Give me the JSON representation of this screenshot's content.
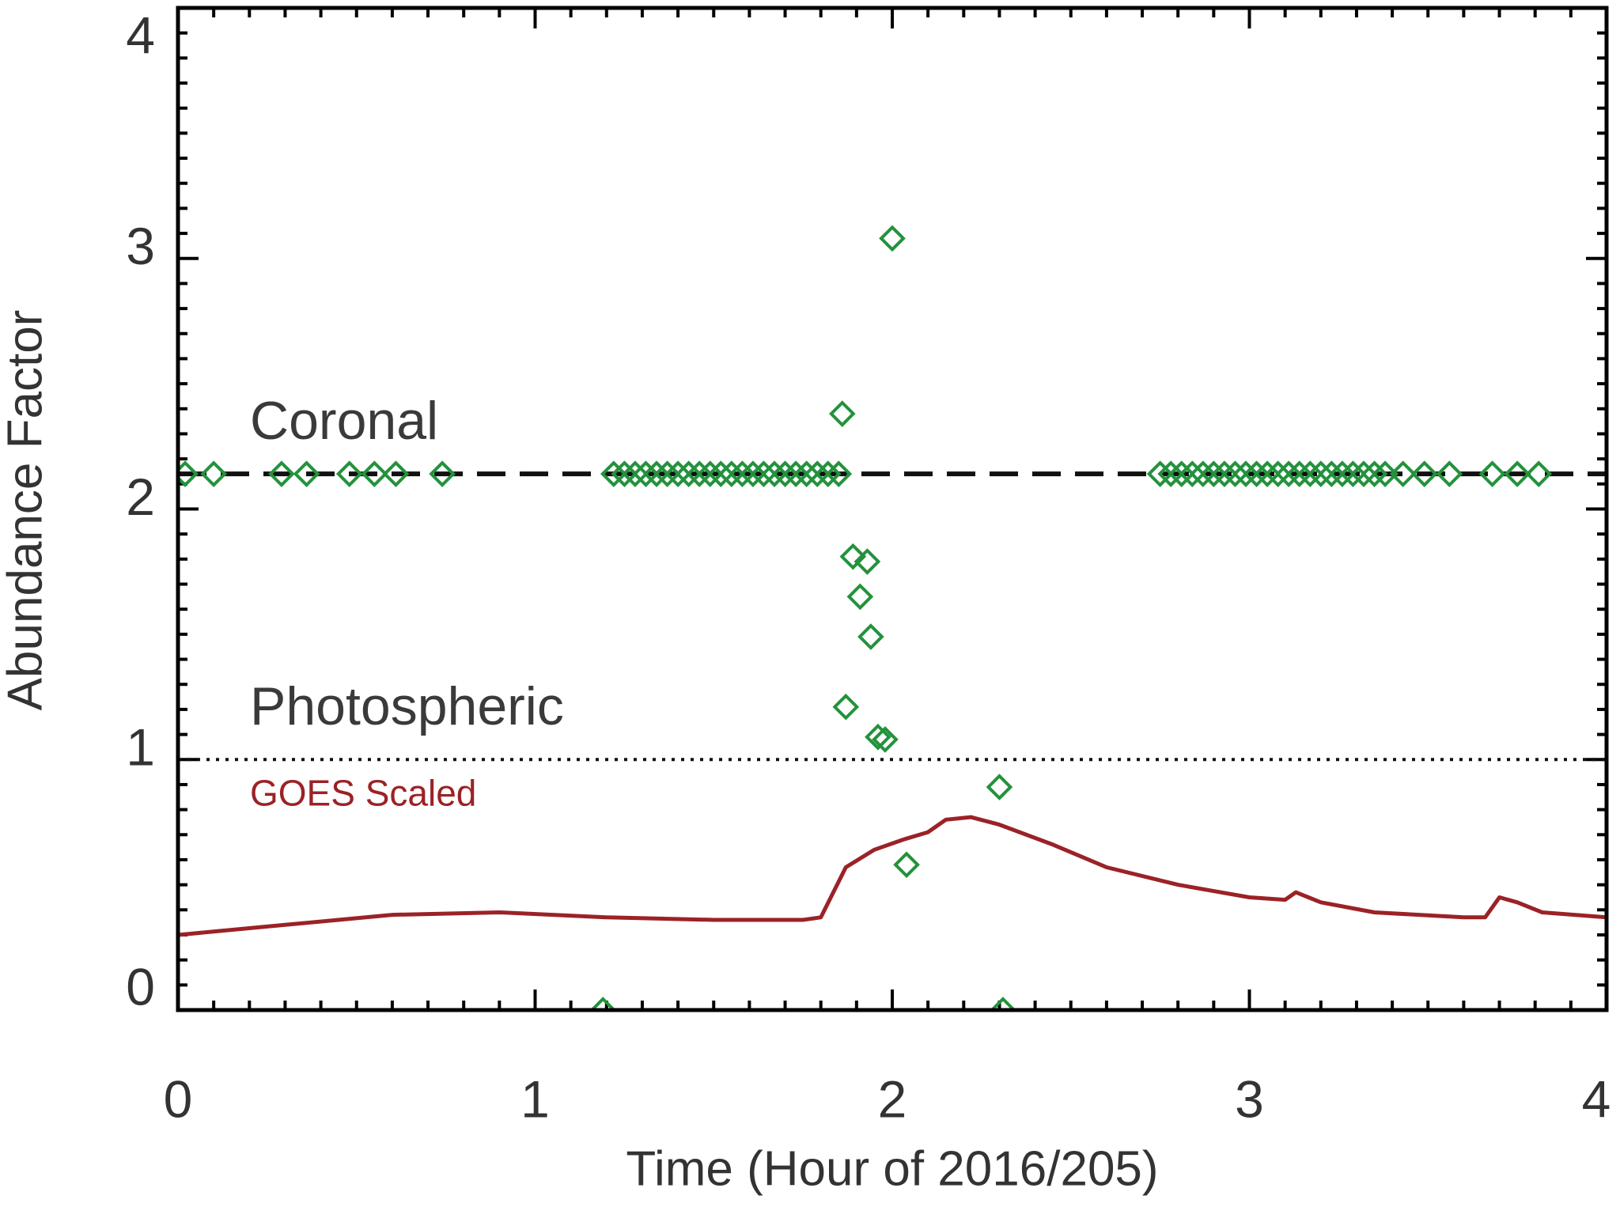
{
  "chart_data": {
    "type": "scatter",
    "x_label": "Time (Hour of 2016/205)",
    "y_label": "Abundance Factor",
    "xlim": [
      0,
      4
    ],
    "xticks": [
      0,
      1,
      2,
      3,
      4
    ],
    "ylim": [
      0,
      4
    ],
    "yticks": [
      0,
      1,
      2,
      3,
      4
    ],
    "hlines": [
      {
        "value": 2.14,
        "style": "dashed",
        "label": "Coronal"
      },
      {
        "value": 1,
        "style": "dotted",
        "label": "Photospheric"
      }
    ],
    "series": [
      {
        "type": "scatter",
        "color": "#23923c",
        "x": [
          0.02,
          0.1,
          0.29,
          0.36,
          0.48,
          0.55,
          0.61,
          0.74,
          1.22,
          1.25,
          1.28,
          1.31,
          1.34,
          1.37,
          1.4,
          1.43,
          1.46,
          1.49,
          1.52,
          1.55,
          1.58,
          1.61,
          1.64,
          1.67,
          1.7,
          1.73,
          1.76,
          1.79,
          1.82,
          1.85,
          2.75,
          2.78,
          2.81,
          2.84,
          2.87,
          2.9,
          2.93,
          2.96,
          2.99,
          3.02,
          3.05,
          3.08,
          3.11,
          3.14,
          3.17,
          3.2,
          3.23,
          3.26,
          3.29,
          3.32,
          3.35,
          3.38,
          3.43,
          3.49,
          3.56,
          3.68,
          3.75,
          3.81,
          2.0,
          1.86,
          1.89,
          1.93,
          1.91,
          1.94,
          1.87,
          1.96,
          1.98,
          2.3,
          2.04,
          1.19,
          2.31
        ],
        "values": [
          2.14,
          2.14,
          2.14,
          2.14,
          2.14,
          2.14,
          2.14,
          2.14,
          2.14,
          2.14,
          2.14,
          2.14,
          2.14,
          2.14,
          2.14,
          2.14,
          2.14,
          2.14,
          2.14,
          2.14,
          2.14,
          2.14,
          2.14,
          2.14,
          2.14,
          2.14,
          2.14,
          2.14,
          2.14,
          2.14,
          2.14,
          2.14,
          2.14,
          2.14,
          2.14,
          2.14,
          2.14,
          2.14,
          2.14,
          2.14,
          2.14,
          2.14,
          2.14,
          2.14,
          2.14,
          2.14,
          2.14,
          2.14,
          2.14,
          2.14,
          2.14,
          2.14,
          2.14,
          2.14,
          2.14,
          2.14,
          2.14,
          2.14,
          3.08,
          2.38,
          1.81,
          1.79,
          1.65,
          1.49,
          1.21,
          1.09,
          1.08,
          0.89,
          0.58,
          0,
          0
        ]
      },
      {
        "type": "line",
        "name": "GOES Scaled",
        "color": "#9b2226",
        "x": [
          0,
          0.3,
          0.6,
          0.9,
          1.2,
          1.5,
          1.75,
          1.8,
          1.87,
          1.95,
          2.03,
          2.1,
          2.15,
          2.22,
          2.3,
          2.45,
          2.6,
          2.8,
          3.0,
          3.1,
          3.13,
          3.2,
          3.35,
          3.6,
          3.66,
          3.7,
          3.75,
          3.82,
          4.0
        ],
        "values": [
          0.3,
          0.34,
          0.38,
          0.39,
          0.37,
          0.36,
          0.36,
          0.37,
          0.57,
          0.64,
          0.68,
          0.71,
          0.76,
          0.77,
          0.74,
          0.66,
          0.57,
          0.5,
          0.45,
          0.44,
          0.47,
          0.43,
          0.39,
          0.37,
          0.37,
          0.45,
          0.43,
          0.39,
          0.37
        ]
      }
    ]
  }
}
